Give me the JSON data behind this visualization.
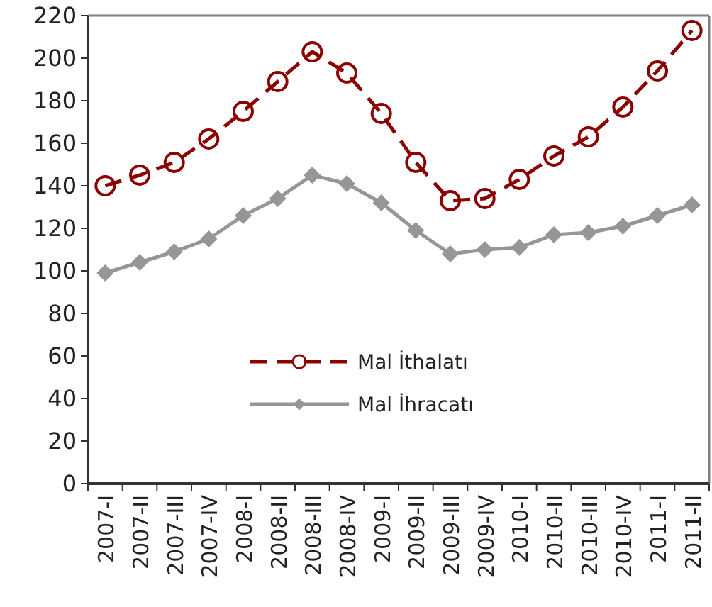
{
  "chart_data": {
    "type": "line",
    "categories": [
      "2007-I",
      "2007-II",
      "2007-III",
      "2007-IV",
      "2008-I",
      "2008-II",
      "2008-III",
      "2008-IV",
      "2009-I",
      "2009-II",
      "2009-III",
      "2009-IV",
      "2010-I",
      "2010-II",
      "2010-III",
      "2010-IV",
      "2011-I",
      "2011-II"
    ],
    "series": [
      {
        "name": "Mal İthalatı",
        "color": "#8b0000",
        "marker": "circle",
        "line_style": "dashed",
        "values": [
          140,
          145,
          151,
          162,
          175,
          189,
          203,
          193,
          174,
          151,
          133,
          134,
          143,
          154,
          163,
          177,
          194,
          213
        ]
      },
      {
        "name": "Mal İhracatı",
        "color": "#969696",
        "marker": "diamond",
        "line_style": "solid",
        "values": [
          99,
          104,
          109,
          115,
          126,
          134,
          145,
          141,
          132,
          119,
          108,
          110,
          111,
          117,
          118,
          121,
          126,
          131
        ]
      }
    ],
    "ylim": [
      0,
      220
    ],
    "yticks": [
      0,
      20,
      40,
      60,
      80,
      100,
      120,
      140,
      160,
      180,
      200,
      220
    ],
    "grid": false,
    "legend": "center"
  }
}
